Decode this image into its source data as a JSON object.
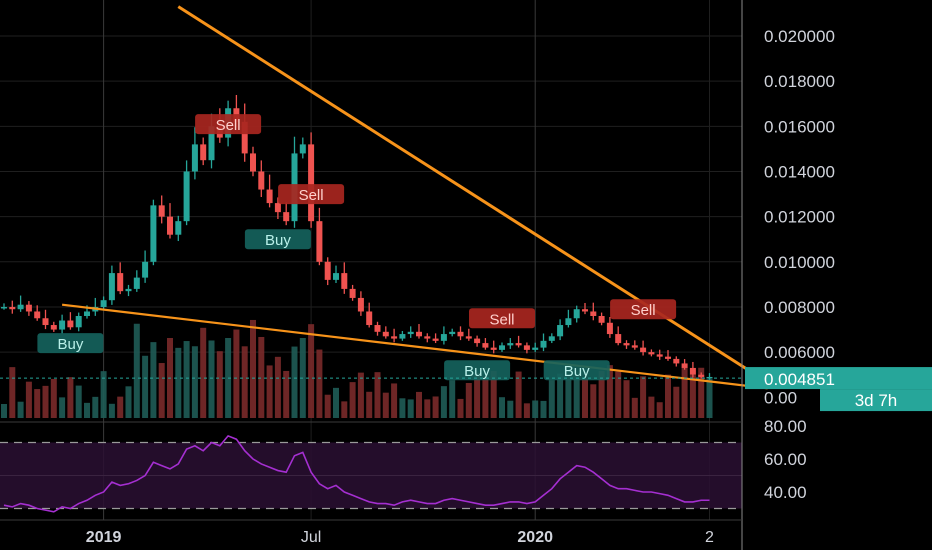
{
  "chart_data": {
    "type": "candlestick",
    "price_axis": {
      "ticks": [
        "0.020000",
        "0.018000",
        "0.016000",
        "0.014000",
        "0.012000",
        "0.010000",
        "0.008000",
        "0.006000",
        "0.00"
      ],
      "tick_values": [
        0.02,
        0.018,
        0.016,
        0.014,
        0.012,
        0.01,
        0.008,
        0.006,
        0.004
      ],
      "range": [
        0.0031,
        0.021
      ]
    },
    "time_axis": {
      "labels": [
        "2019",
        "Jul",
        "2020",
        "2"
      ],
      "label_weeks": [
        12,
        37,
        64,
        85
      ]
    },
    "last_price": {
      "value": "0.004851",
      "countdown": "3d 7h",
      "price": 0.004851,
      "color": "#26a69a"
    },
    "colors": {
      "up": "#26a69a",
      "down": "#ef5350",
      "trendline": "#f7931a",
      "rsi": "#a52fd1"
    },
    "candles_weekly_close": [
      0.008,
      0.0079,
      0.0081,
      0.0078,
      0.0075,
      0.0072,
      0.007,
      0.0074,
      0.0071,
      0.0076,
      0.0078,
      0.008,
      0.0083,
      0.0095,
      0.0087,
      0.0088,
      0.0093,
      0.01,
      0.0125,
      0.012,
      0.0112,
      0.0118,
      0.014,
      0.0152,
      0.0145,
      0.016,
      0.0155,
      0.0168,
      0.0162,
      0.0148,
      0.014,
      0.0132,
      0.0126,
      0.0122,
      0.0118,
      0.0148,
      0.0152,
      0.0118,
      0.01,
      0.0092,
      0.0095,
      0.0088,
      0.0084,
      0.0078,
      0.0072,
      0.0069,
      0.0067,
      0.0066,
      0.0068,
      0.0069,
      0.0067,
      0.0066,
      0.0065,
      0.0068,
      0.0069,
      0.0067,
      0.0066,
      0.0064,
      0.0062,
      0.0061,
      0.0063,
      0.0064,
      0.0063,
      0.0061,
      0.0062,
      0.0065,
      0.0067,
      0.0072,
      0.0075,
      0.0079,
      0.0078,
      0.0076,
      0.0073,
      0.0068,
      0.0064,
      0.0063,
      0.0062,
      0.006,
      0.0059,
      0.0058,
      0.0057,
      0.0055,
      0.0053,
      0.005,
      0.0049,
      0.0049
    ],
    "signals": [
      {
        "label": "Sell",
        "type": "sell",
        "week": 27,
        "price": 0.0161
      },
      {
        "label": "Sell",
        "type": "sell",
        "week": 37,
        "price": 0.013
      },
      {
        "label": "Buy",
        "type": "buy",
        "week": 33,
        "price": 0.011
      },
      {
        "label": "Buy",
        "type": "buy",
        "week": 8,
        "price": 0.0064
      },
      {
        "label": "Sell",
        "type": "sell",
        "week": 60,
        "price": 0.0075
      },
      {
        "label": "Sell",
        "type": "sell",
        "week": 77,
        "price": 0.0079
      },
      {
        "label": "Buy",
        "type": "buy",
        "week": 57,
        "price": 0.0052
      },
      {
        "label": "Buy",
        "type": "buy",
        "week": 69,
        "price": 0.0052
      }
    ],
    "trendlines": [
      {
        "name": "",
        "from": [
          21,
          0.0213
        ],
        "to": [
          91,
          0.0049
        ]
      },
      {
        "name": "",
        "from": [
          7,
          0.0081
        ],
        "to": [
          92,
          0.0044
        ]
      }
    ],
    "rsi": {
      "levels": [
        "80.00",
        "60.00",
        "40.00"
      ],
      "level_values": [
        80,
        60,
        40
      ],
      "bands": [
        70,
        30
      ],
      "values": [
        32,
        31,
        33,
        32,
        30,
        29,
        28,
        31,
        30,
        33,
        35,
        38,
        40,
        46,
        44,
        45,
        47,
        50,
        58,
        56,
        54,
        57,
        66,
        68,
        65,
        70,
        68,
        74,
        72,
        65,
        60,
        57,
        55,
        53,
        52,
        62,
        64,
        52,
        45,
        42,
        44,
        40,
        38,
        36,
        34,
        33,
        33,
        32,
        34,
        35,
        34,
        33,
        33,
        35,
        36,
        35,
        34,
        33,
        32,
        32,
        33,
        34,
        34,
        33,
        34,
        38,
        42,
        48,
        52,
        56,
        55,
        52,
        48,
        44,
        42,
        42,
        41,
        40,
        40,
        39,
        38,
        36,
        34,
        34,
        35,
        35
      ]
    }
  }
}
